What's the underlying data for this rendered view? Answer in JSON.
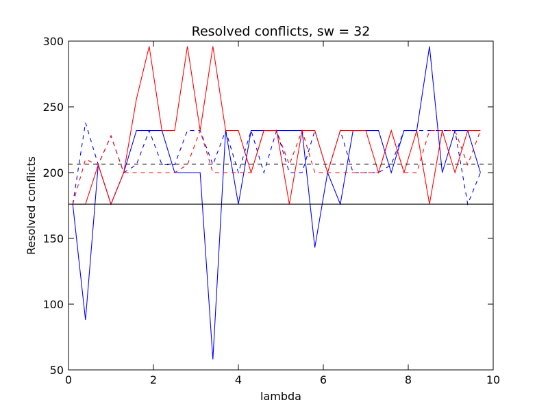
{
  "chart_data": {
    "type": "line",
    "title": "Resolved conflicts, sw = 32",
    "xlabel": "lambda",
    "ylabel": "Resolved conflicts",
    "xlim": [
      0,
      10
    ],
    "ylim": [
      50,
      300
    ],
    "xticks": [
      0,
      2,
      4,
      6,
      8,
      10
    ],
    "yticks": [
      50,
      100,
      150,
      200,
      250,
      300
    ],
    "grid": false,
    "legend": "none",
    "hlines": [
      {
        "y": 176,
        "color": "#000000",
        "style": "solid"
      },
      {
        "y": 206.5,
        "color": "#000000",
        "style": "dashed"
      }
    ],
    "series": [
      {
        "color": "#0000ff",
        "style": "solid",
        "x": [
          0.1,
          0.4,
          0.7,
          1.0,
          1.3,
          1.6,
          1.9,
          2.2,
          2.5,
          2.8,
          3.1,
          3.4,
          3.7,
          4.0,
          4.3,
          4.6,
          4.9,
          5.2,
          5.5,
          5.8,
          6.1,
          6.4,
          6.7,
          7.0,
          7.3,
          7.6,
          7.9,
          8.2,
          8.5,
          8.8,
          9.1,
          9.4,
          9.7
        ],
        "y": [
          176,
          88,
          206,
          176,
          200,
          232,
          232,
          232,
          200,
          200,
          200,
          58,
          232,
          176,
          232,
          232,
          232,
          232,
          232,
          143,
          200,
          176,
          232,
          232,
          232,
          200,
          232,
          232,
          296,
          200,
          232,
          232,
          200
        ]
      },
      {
        "color": "#0000ff",
        "style": "dashed",
        "x": [
          0.1,
          0.4,
          0.7,
          1.0,
          1.3,
          1.6,
          1.9,
          2.2,
          2.5,
          2.8,
          3.1,
          3.4,
          3.7,
          4.0,
          4.3,
          4.6,
          4.9,
          5.2,
          5.5,
          5.8,
          6.1,
          6.4,
          6.7,
          7.0,
          7.3,
          7.6,
          7.9,
          8.2,
          8.5,
          8.8,
          9.1,
          9.4,
          9.7
        ],
        "y": [
          176,
          238,
          206,
          228,
          200,
          206,
          232,
          206,
          206,
          232,
          232,
          206,
          232,
          200,
          232,
          200,
          232,
          200,
          200,
          232,
          200,
          232,
          200,
          200,
          200,
          206,
          232,
          232,
          232,
          232,
          232,
          176,
          200
        ]
      },
      {
        "color": "#ff0000",
        "style": "solid",
        "x": [
          0.1,
          0.4,
          0.7,
          1.0,
          1.3,
          1.6,
          1.9,
          2.2,
          2.5,
          2.8,
          3.1,
          3.4,
          3.7,
          4.0,
          4.3,
          4.6,
          4.9,
          5.2,
          5.5,
          5.8,
          6.1,
          6.4,
          6.7,
          7.0,
          7.3,
          7.6,
          7.9,
          8.2,
          8.5,
          8.8,
          9.1,
          9.4,
          9.7
        ],
        "y": [
          176,
          176,
          206,
          176,
          200,
          256,
          296,
          232,
          232,
          296,
          232,
          296,
          232,
          232,
          200,
          232,
          232,
          176,
          232,
          232,
          200,
          232,
          232,
          232,
          200,
          232,
          200,
          232,
          176,
          232,
          200,
          232,
          232
        ]
      },
      {
        "color": "#ff0000",
        "style": "dashed",
        "x": [
          0.1,
          0.4,
          0.7,
          1.0,
          1.3,
          1.6,
          1.9,
          2.2,
          2.5,
          2.8,
          3.1,
          3.4,
          3.7,
          4.0,
          4.3,
          4.6,
          4.9,
          5.2,
          5.5,
          5.8,
          6.1,
          6.4,
          6.7,
          7.0,
          7.3,
          7.6,
          7.9,
          8.2,
          8.5,
          8.8,
          9.1,
          9.4,
          9.7
        ],
        "y": [
          176,
          210,
          206,
          228,
          200,
          200,
          200,
          200,
          200,
          206,
          232,
          200,
          200,
          200,
          200,
          232,
          232,
          206,
          232,
          200,
          200,
          200,
          200,
          200,
          200,
          232,
          200,
          200,
          232,
          232,
          232,
          206,
          232
        ]
      }
    ]
  }
}
